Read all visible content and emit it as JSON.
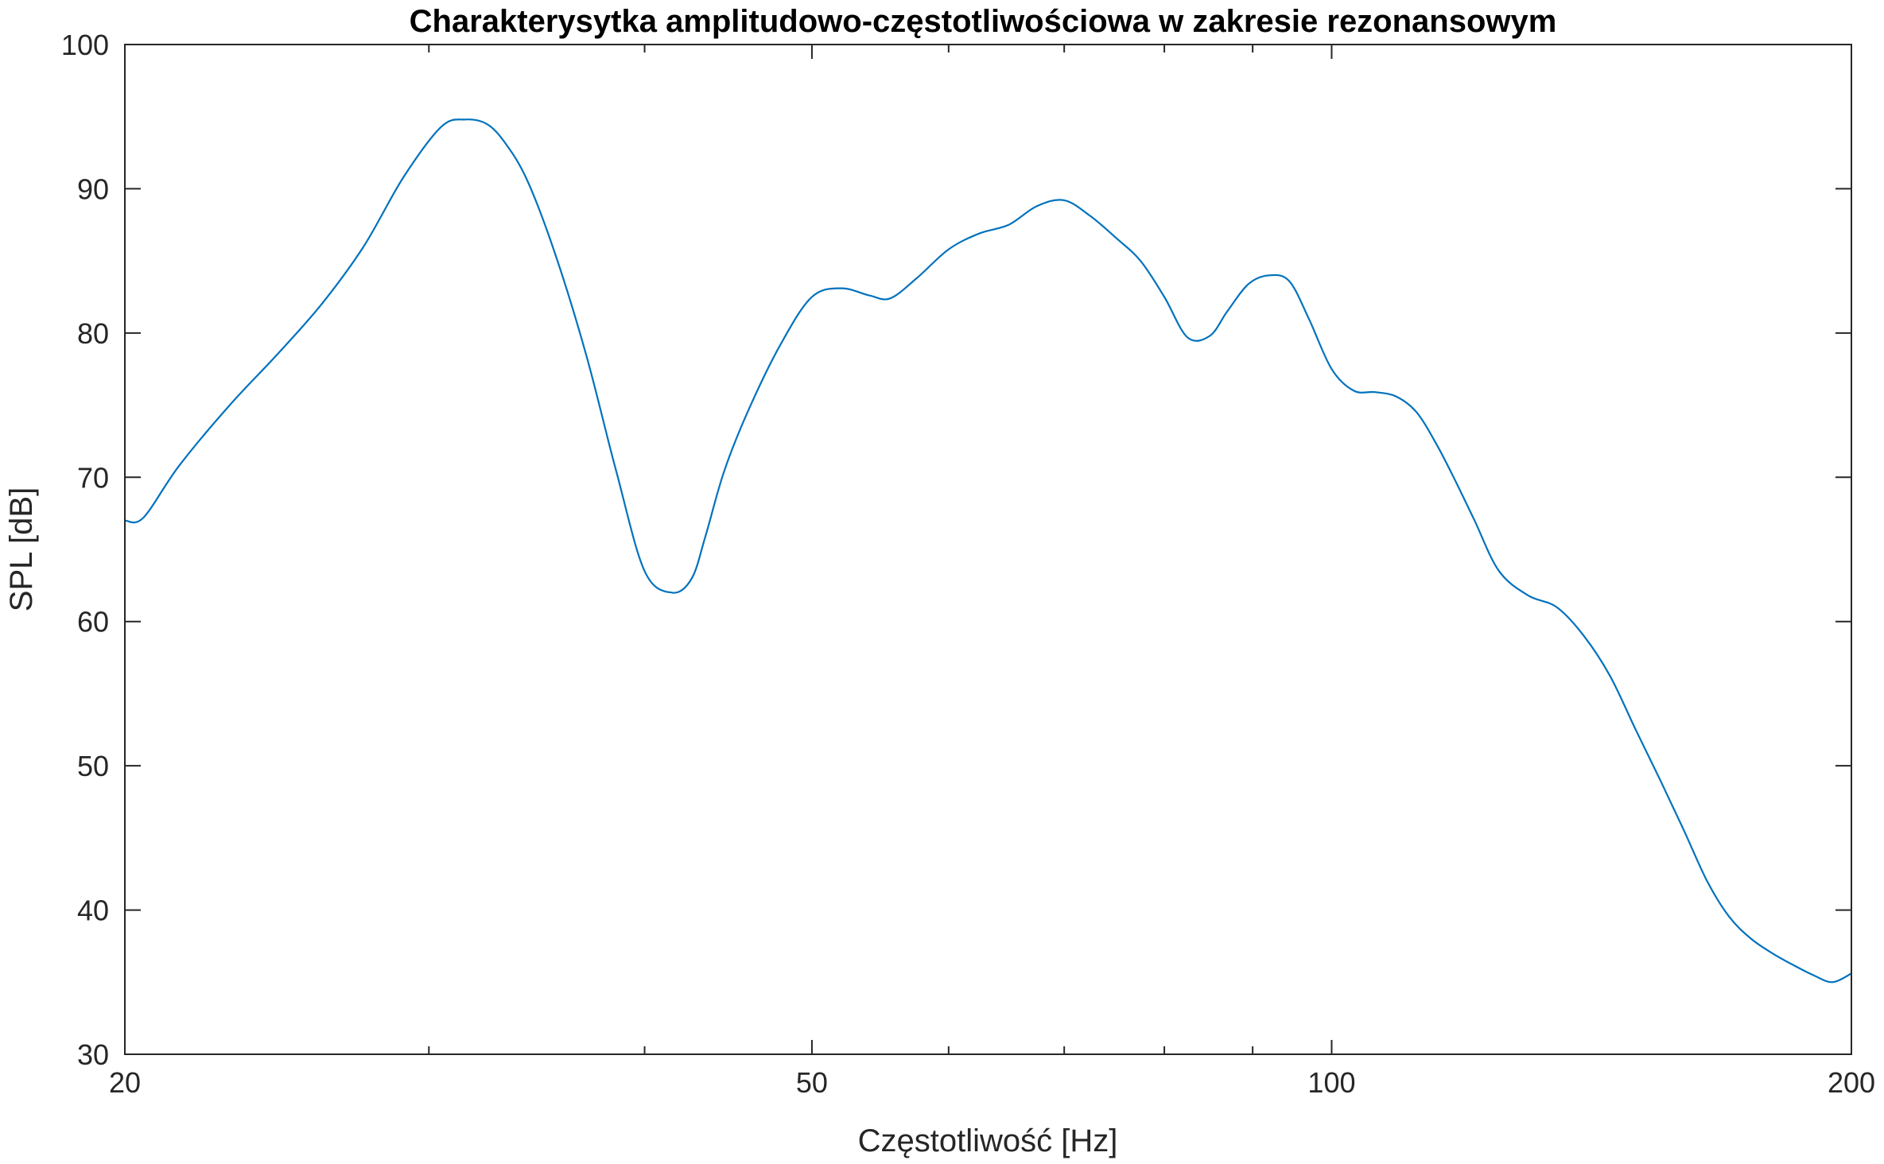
{
  "chart_data": {
    "type": "line",
    "title": "Charakterysytka amplitudowo-częstotliwościowa w zakresie rezonansowym",
    "xlabel": "Częstotliwość [Hz]",
    "ylabel": "SPL [dB]",
    "xscale": "log",
    "xlim": [
      20,
      200
    ],
    "ylim": [
      30,
      100
    ],
    "xticks": [
      20,
      50,
      100,
      200
    ],
    "xticklabels": [
      "20",
      "50",
      "100",
      "200"
    ],
    "xminorticks": [
      30,
      40,
      60,
      70,
      80,
      90
    ],
    "yticks": [
      30,
      40,
      50,
      60,
      70,
      80,
      90,
      100
    ],
    "yticklabels": [
      "30",
      "40",
      "50",
      "60",
      "70",
      "80",
      "90",
      "100"
    ],
    "grid": false,
    "line_color": "#0072BD",
    "series": [
      {
        "x": [
          20.0,
          20.5,
          21.5,
          23.0,
          24.5,
          26.0,
          27.5,
          29.0,
          30.5,
          31.5,
          32.4,
          33.2,
          34.2,
          35.5,
          37.0,
          38.5,
          40.0,
          41.5,
          42.6,
          43.4,
          44.5,
          46.0,
          48.0,
          50.0,
          52.0,
          54.0,
          55.5,
          57.5,
          60.0,
          62.5,
          65.0,
          67.5,
          70.0,
          72.5,
          75.0,
          77.5,
          80.0,
          82.5,
          85.0,
          87.0,
          89.5,
          92.0,
          94.5,
          97.0,
          100.0,
          103.0,
          106.0,
          109.0,
          112.0,
          115.0,
          118.0,
          121.0,
          125.0,
          130.0,
          135.0,
          140.0,
          145.0,
          150.0,
          155.0,
          160.0,
          165.0,
          170.0,
          175.0,
          180.0,
          185.0,
          190.0,
          195.0,
          200.0
        ],
        "y": [
          67.0,
          67.2,
          70.8,
          75.0,
          78.5,
          82.0,
          86.0,
          90.8,
          94.3,
          94.8,
          94.5,
          93.2,
          90.6,
          85.5,
          78.5,
          70.5,
          63.5,
          62.0,
          63.0,
          66.0,
          70.5,
          74.8,
          79.3,
          82.5,
          83.1,
          82.6,
          82.4,
          83.8,
          85.8,
          86.9,
          87.5,
          88.8,
          89.2,
          88.1,
          86.6,
          85.0,
          82.5,
          79.7,
          79.8,
          81.5,
          83.4,
          84.0,
          83.6,
          81.0,
          77.5,
          76.0,
          75.9,
          75.6,
          74.5,
          72.3,
          69.7,
          67.0,
          63.5,
          61.8,
          61.0,
          59.0,
          56.2,
          52.5,
          49.0,
          45.5,
          42.0,
          39.5,
          38.0,
          37.0,
          36.2,
          35.5,
          35.0,
          35.6
        ]
      }
    ]
  }
}
